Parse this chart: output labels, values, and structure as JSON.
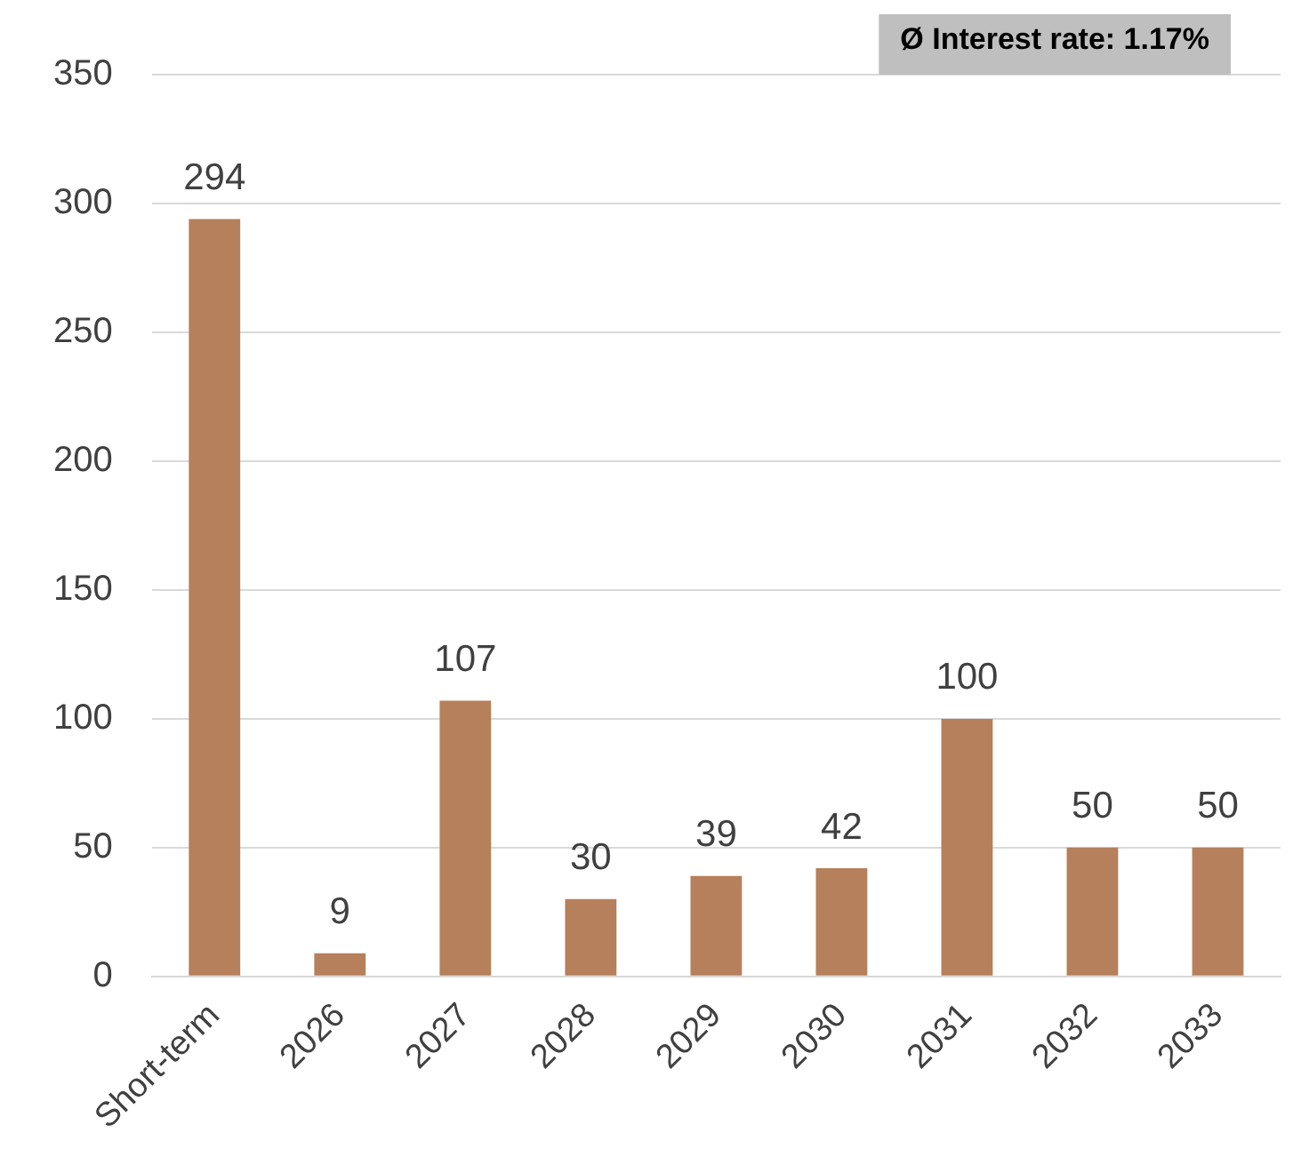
{
  "chart_data": {
    "type": "bar",
    "categories": [
      "Short-term",
      "2026",
      "2027",
      "2028",
      "2029",
      "2030",
      "2031",
      "2032",
      "2033"
    ],
    "values": [
      294,
      9,
      107,
      30,
      39,
      42,
      100,
      50,
      50
    ],
    "color": "#b5805b",
    "ylim": [
      0,
      350
    ],
    "yticks": [
      0,
      50,
      100,
      150,
      200,
      250,
      300,
      350
    ],
    "grid": "y",
    "data_labels": true,
    "annotations": [
      "Ø Interest rate: 1.17%"
    ]
  }
}
